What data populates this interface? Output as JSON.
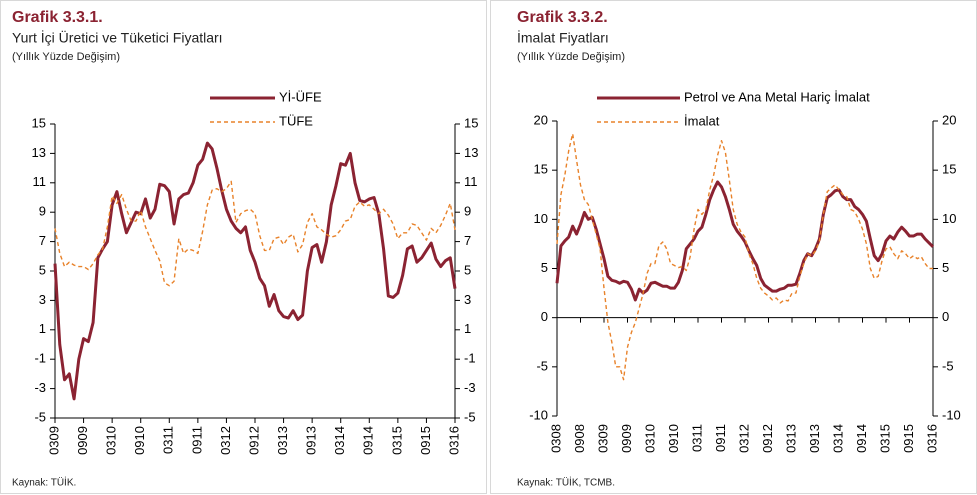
{
  "chart_data": [
    {
      "type": "line",
      "title": "Grafik 3.3.1.",
      "subtitle": "Yurt İçi Üretici ve Tüketici Fiyatları",
      "note": "(Yıllık Yüzde Değişim)",
      "source": "Kaynak: TÜİK.",
      "categories": [
        "0309",
        null,
        null,
        null,
        null,
        null,
        "0909",
        null,
        null,
        null,
        null,
        null,
        "0310",
        null,
        null,
        null,
        null,
        null,
        "0910",
        null,
        null,
        null,
        null,
        null,
        "0311",
        null,
        null,
        null,
        null,
        null,
        "0911",
        null,
        null,
        null,
        null,
        null,
        "0312",
        null,
        null,
        null,
        null,
        null,
        "0912",
        null,
        null,
        null,
        null,
        null,
        "0313",
        null,
        null,
        null,
        null,
        null,
        "0913",
        null,
        null,
        null,
        null,
        null,
        "0314",
        null,
        null,
        null,
        null,
        null,
        "0914",
        null,
        null,
        null,
        null,
        null,
        "0315",
        null,
        null,
        null,
        null,
        null,
        "0915",
        null,
        null,
        null,
        null,
        null,
        "0316"
      ],
      "series": [
        {
          "name": "Yİ-ÜFE",
          "color": "#8b2332",
          "line_style": "solid",
          "values": [
            5.5,
            0,
            -2.4,
            -2.0,
            -3.7,
            -1.0,
            0.4,
            0.2,
            1.5,
            5.9,
            6.5,
            7.0,
            9.5,
            10.4,
            8.9,
            7.6,
            8.3,
            9.0,
            8.9,
            9.9,
            8.6,
            9.2,
            10.9,
            10.8,
            10.4,
            8.2,
            9.9,
            10.2,
            10.3,
            11.0,
            12.2,
            12.6,
            13.7,
            13.3,
            12.0,
            10.5,
            9.2,
            8.4,
            7.9,
            7.6,
            8.0,
            6.4,
            5.6,
            4.5,
            4.0,
            2.6,
            3.4,
            2.3,
            1.9,
            1.8,
            2.3,
            1.7,
            2.0,
            5.0,
            6.6,
            6.8,
            5.6,
            7.0,
            9.5,
            10.8,
            12.3,
            12.2,
            13.0,
            11.0,
            9.8,
            9.7,
            9.9,
            10.0,
            8.9,
            6.5,
            3.3,
            3.2,
            3.5,
            4.7,
            6.5,
            6.7,
            5.6,
            5.9,
            6.4,
            6.9,
            5.8,
            5.3,
            5.7,
            5.9,
            3.8
          ]
        },
        {
          "name": "TÜFE",
          "color": "#e8822a",
          "line_style": "dashed",
          "values": [
            7.9,
            6.2,
            5.3,
            5.6,
            5.4,
            5.3,
            5.3,
            5.1,
            5.5,
            6.1,
            6.5,
            8.0,
            10.1,
            9.6,
            10.2,
            9.2,
            8.4,
            8.4,
            9.1,
            8.0,
            7.2,
            6.4,
            5.7,
            4.2,
            4.0,
            4.3,
            7.2,
            6.2,
            6.5,
            6.4,
            6.2,
            7.7,
            9.5,
            10.5,
            10.6,
            10.4,
            10.6,
            11.1,
            8.3,
            8.9,
            9.1,
            9.2,
            8.9,
            7.4,
            6.4,
            6.4,
            7.2,
            7.3,
            6.8,
            7.3,
            7.5,
            6.3,
            6.8,
            8.3,
            8.9,
            8.0,
            7.8,
            7.5,
            7.3,
            7.4,
            7.8,
            8.4,
            8.5,
            9.4,
            9.7,
            9.4,
            9.5,
            9.2,
            8.9,
            9.2,
            8.8,
            8.2,
            7.2,
            7.6,
            7.6,
            8.2,
            8.1,
            7.6,
            7.1,
            7.9,
            7.6,
            8.1,
            8.8,
            9.6,
            7.8
          ]
        }
      ],
      "ylim": [
        -5,
        15
      ],
      "yticks": [
        -5,
        -3,
        -1,
        1,
        3,
        5,
        7,
        9,
        11,
        13,
        15
      ],
      "y2lim": [
        -5,
        15
      ],
      "y2ticks": [
        -5,
        -3,
        -1,
        1,
        3,
        5,
        7,
        9,
        11,
        13,
        15
      ],
      "x_axis_at": -5,
      "grid": false,
      "legend": "top"
    },
    {
      "type": "line",
      "title": "Grafik 3.3.2.",
      "subtitle": "İmalat Fiyatları",
      "note": "(Yıllık Yüzde Değişim)",
      "source": "Kaynak: TÜİK, TCMB.",
      "categories": [
        "0308",
        null,
        null,
        null,
        null,
        null,
        "0908",
        null,
        null,
        null,
        null,
        null,
        "0309",
        null,
        null,
        null,
        null,
        null,
        "0909",
        null,
        null,
        null,
        null,
        null,
        "0310",
        null,
        null,
        null,
        null,
        null,
        "0910",
        null,
        null,
        null,
        null,
        null,
        "0311",
        null,
        null,
        null,
        null,
        null,
        "0911",
        null,
        null,
        null,
        null,
        null,
        "0312",
        null,
        null,
        null,
        null,
        null,
        "0912",
        null,
        null,
        null,
        null,
        null,
        "0313",
        null,
        null,
        null,
        null,
        null,
        "0913",
        null,
        null,
        null,
        null,
        null,
        "0314",
        null,
        null,
        null,
        null,
        null,
        "0914",
        null,
        null,
        null,
        null,
        null,
        "0315",
        null,
        null,
        null,
        null,
        null,
        "0915",
        null,
        null,
        null,
        null,
        null,
        "0316"
      ],
      "series": [
        {
          "name": "Petrol ve Ana Metal Hariç İmalat",
          "color": "#8b2332",
          "line_style": "solid",
          "values": [
            3.5,
            7.3,
            7.8,
            8.2,
            9.3,
            8.5,
            9.5,
            10.7,
            10.0,
            10.2,
            9.0,
            7.5,
            6.0,
            4.2,
            3.8,
            3.7,
            3.5,
            3.7,
            3.6,
            2.9,
            1.8,
            2.9,
            2.5,
            2.8,
            3.5,
            3.6,
            3.4,
            3.2,
            3.2,
            3.0,
            3.0,
            3.6,
            4.8,
            7.0,
            7.5,
            8.0,
            8.8,
            9.2,
            10.5,
            12.0,
            13.0,
            13.8,
            13.3,
            12.3,
            11.0,
            9.5,
            8.8,
            8.3,
            7.7,
            6.8,
            6.0,
            5.3,
            4.0,
            3.3,
            3.0,
            2.7,
            2.7,
            2.9,
            3.0,
            3.3,
            3.3,
            3.4,
            4.5,
            5.8,
            6.5,
            6.3,
            7.0,
            8.0,
            10.5,
            12.2,
            12.5,
            12.9,
            13.0,
            12.3,
            12.0,
            12.0,
            11.3,
            11.0,
            10.5,
            9.8,
            8.0,
            6.3,
            5.8,
            6.5,
            7.8,
            8.3,
            8.0,
            8.7,
            9.2,
            8.8,
            8.3,
            8.3,
            8.5,
            8.5,
            8.0,
            7.6,
            7.2
          ]
        },
        {
          "name": "İmalat",
          "color": "#e8822a",
          "line_style": "dashed",
          "values": [
            7.5,
            12.5,
            14.5,
            17.0,
            18.7,
            16.0,
            13.5,
            12.0,
            11.5,
            10.0,
            8.5,
            7.0,
            3.0,
            -0.5,
            -2.5,
            -5.0,
            -5.0,
            -6.3,
            -3.0,
            -1.5,
            -0.5,
            1.0,
            2.5,
            4.5,
            5.5,
            5.5,
            7.3,
            7.7,
            7.0,
            5.5,
            5.3,
            5.1,
            5.2,
            4.8,
            6.2,
            9.0,
            11.0,
            10.5,
            11.0,
            13.0,
            14.5,
            16.5,
            18.0,
            16.8,
            14.0,
            11.0,
            9.5,
            8.7,
            8.2,
            6.5,
            5.5,
            4.0,
            3.0,
            2.5,
            2.2,
            1.8,
            2.0,
            1.5,
            1.8,
            1.7,
            2.5,
            2.5,
            4.2,
            5.5,
            6.5,
            6.3,
            6.8,
            7.8,
            10.5,
            12.8,
            13.2,
            13.5,
            13.0,
            12.5,
            12.3,
            11.0,
            10.8,
            10.0,
            9.0,
            7.5,
            5.0,
            4.0,
            4.2,
            5.8,
            7.0,
            7.2,
            6.5,
            6.0,
            6.8,
            6.5,
            6.0,
            6.3,
            6.0,
            6.2,
            5.5,
            5.0,
            5.0
          ]
        }
      ],
      "ylim": [
        -10,
        20
      ],
      "yticks": [
        -10,
        -5,
        0,
        5,
        10,
        15,
        20
      ],
      "y2lim": [
        -10,
        20
      ],
      "y2ticks": [
        -10,
        -5,
        0,
        5,
        10,
        15,
        20
      ],
      "x_axis_at": 0,
      "grid": false,
      "legend": "top"
    }
  ]
}
